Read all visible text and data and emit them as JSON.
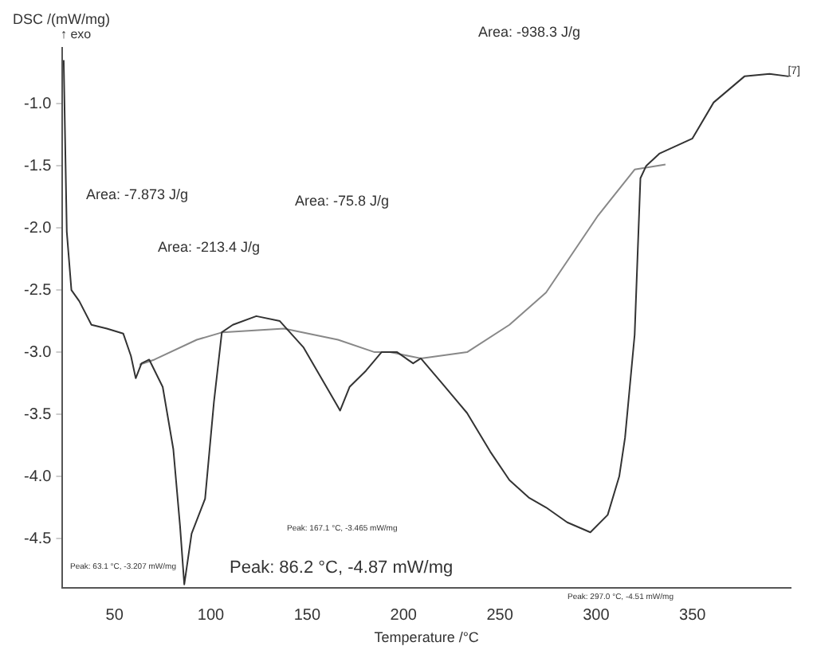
{
  "chart_data": {
    "type": "line",
    "ylabel": "DSC /(mW/mg)",
    "xlabel": "Temperature /°C",
    "annotations": [
      "↑ exo",
      "Area: -7.873 J/g",
      "Area: -213.4 J/g",
      "Area: -75.8 J/g",
      "Area: -938.3 J/g",
      "[7]",
      "Peak: 63.1 °C, -3.207 mW/mg",
      "Peak: 167.1 °C, -3.465 mW/mg",
      "Peak: 86.2 °C, -4.87 mW/mg",
      "Peak: 297.0 °C, -4.51 mW/mg"
    ],
    "series": [
      {
        "color": "#333333",
        "x": [
          23.6,
          25.2,
          27.6,
          31.7,
          38,
          46,
          54.5,
          58.5,
          61,
          64,
          68,
          75,
          80.5,
          84,
          86.2,
          90,
          97,
          101.6,
          105.7,
          111.4,
          123.6,
          135.8,
          148,
          160,
          167.1,
          172,
          180.5,
          188.6,
          196.7,
          205,
          209,
          220,
          233,
          245,
          255,
          265,
          274,
          285,
          297,
          306,
          312,
          315,
          320,
          323,
          326,
          333,
          350,
          361,
          377,
          390,
          400
        ],
        "values": [
          -0.65,
          -2.03,
          -2.5,
          -2.59,
          -2.78,
          -2.81,
          -2.85,
          -3.03,
          -3.21,
          -3.09,
          -3.06,
          -3.28,
          -3.78,
          -4.4,
          -4.87,
          -4.46,
          -4.18,
          -3.4,
          -2.84,
          -2.78,
          -2.71,
          -2.75,
          -2.96,
          -3.28,
          -3.47,
          -3.28,
          -3.15,
          -3.0,
          -3.0,
          -3.09,
          -3.05,
          -3.25,
          -3.49,
          -3.8,
          -4.03,
          -4.17,
          -4.25,
          -4.37,
          -4.45,
          -4.31,
          -4.0,
          -3.69,
          -2.86,
          -1.6,
          -1.5,
          -1.4,
          -1.28,
          -0.99,
          -0.78,
          -0.76,
          -0.78
        ]
      },
      {
        "color": "#888888",
        "x": [
          63,
          70.7,
          92.7,
          106,
          138,
          166,
          185,
          193,
          209,
          233,
          255,
          274,
          301,
          320,
          336
        ],
        "values": [
          -3.1,
          -3.06,
          -2.9,
          -2.84,
          -2.81,
          -2.9,
          -3.0,
          -3.0,
          -3.05,
          -3.0,
          -2.78,
          -2.52,
          -1.9,
          -1.53,
          -1.49
        ]
      }
    ],
    "xlim": [
      23,
      401
    ],
    "xticks": [
      50,
      100,
      150,
      200,
      250,
      300,
      350
    ],
    "ylim": [
      -4.9,
      -0.55
    ],
    "yticks": [
      {
        "value": -1,
        "label": "-1.0"
      },
      {
        "value": -1.5,
        "label": "-1.5"
      },
      {
        "value": -2,
        "label": "-2.0"
      },
      {
        "value": -2.5,
        "label": "-2.5"
      },
      {
        "value": -3,
        "label": "-3.0"
      },
      {
        "value": -3.5,
        "label": "-3.5"
      },
      {
        "value": -4,
        "label": "-4.0"
      },
      {
        "value": -4.5,
        "label": "-4.5"
      }
    ],
    "grid": false,
    "legend": false,
    "marker": "none",
    "line_style": "solid"
  }
}
